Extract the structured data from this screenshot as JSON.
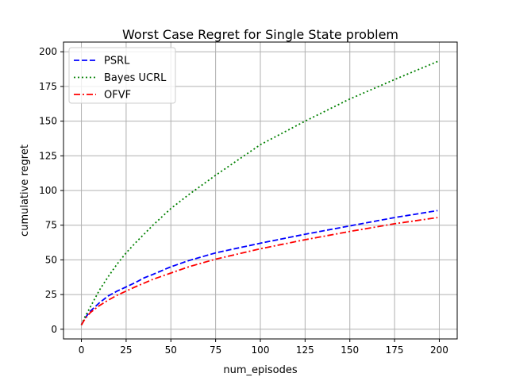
{
  "chart_data": {
    "type": "line",
    "title": "Worst Case Regret for Single State problem",
    "xlabel": "num_episodes",
    "ylabel": "cumulative regret",
    "xlim": [
      -10,
      210
    ],
    "ylim": [
      -7,
      207
    ],
    "xticks": [
      0,
      25,
      50,
      75,
      100,
      125,
      150,
      175,
      200
    ],
    "yticks": [
      0,
      25,
      50,
      75,
      100,
      125,
      150,
      175,
      200
    ],
    "grid": true,
    "legend_position": "upper left",
    "series": [
      {
        "name": "PSRL",
        "color": "#0000ff",
        "style": "dashed",
        "x": [
          0,
          2,
          5,
          10,
          15,
          20,
          25,
          30,
          35,
          40,
          50,
          60,
          75,
          100,
          125,
          150,
          175,
          199
        ],
        "y": [
          3,
          8,
          13,
          19,
          24,
          27.5,
          30.5,
          33.5,
          37,
          39.5,
          45,
          49.5,
          55,
          62,
          68.5,
          74.5,
          80.5,
          85.5
        ]
      },
      {
        "name": "Bayes UCRL",
        "color": "#008000",
        "style": "dotted",
        "x": [
          0,
          2,
          5,
          10,
          15,
          20,
          25,
          30,
          40,
          50,
          60,
          75,
          100,
          125,
          150,
          175,
          199
        ],
        "y": [
          3,
          9,
          16,
          28,
          38,
          47,
          55,
          62,
          75,
          87,
          97,
          111,
          133,
          150,
          166,
          180,
          193
        ]
      },
      {
        "name": "OFVF",
        "color": "#ff0000",
        "style": "dashdot",
        "x": [
          0,
          2,
          5,
          10,
          15,
          20,
          25,
          30,
          40,
          50,
          60,
          75,
          100,
          125,
          150,
          175,
          199
        ],
        "y": [
          3,
          7.5,
          12,
          17,
          21,
          24.5,
          27.5,
          30.5,
          36,
          40.5,
          45,
          50.5,
          58,
          64.5,
          70.5,
          76,
          80.5
        ]
      }
    ]
  }
}
